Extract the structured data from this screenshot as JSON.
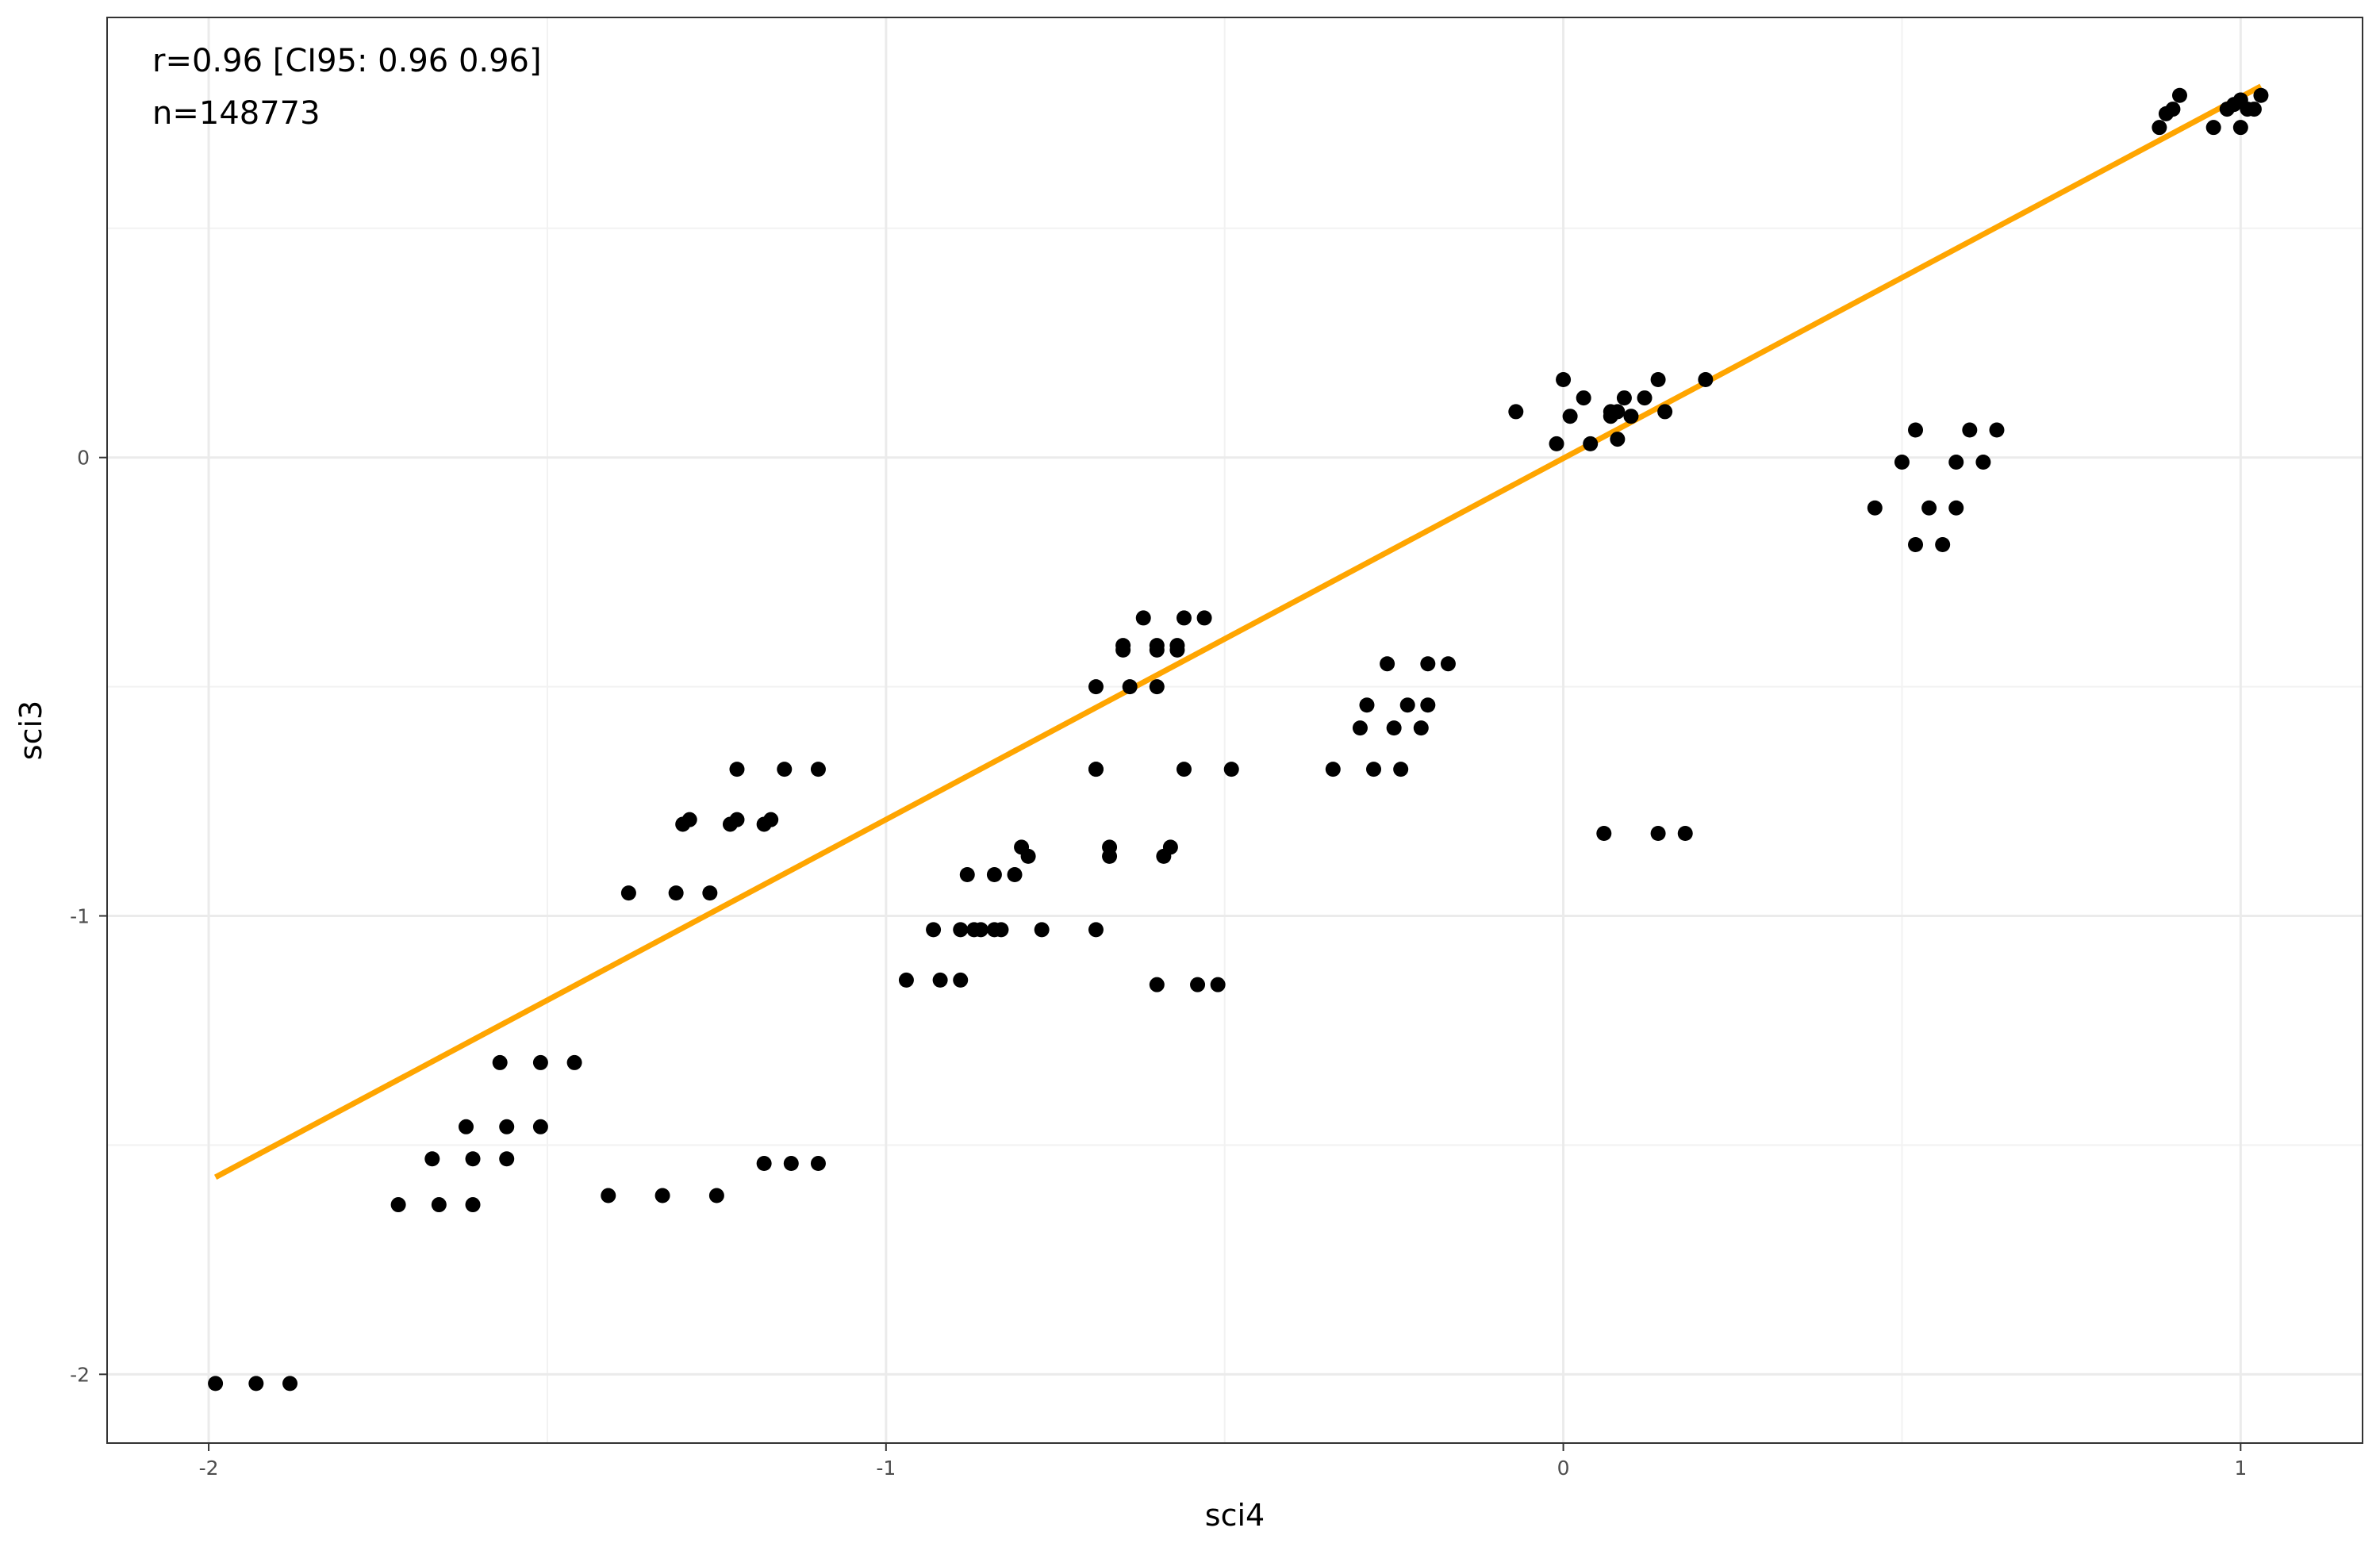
{
  "chart_data": {
    "type": "scatter",
    "title": "",
    "xlabel": "sci4",
    "ylabel": "sci3",
    "xlim": [
      -2.15,
      1.18
    ],
    "ylim": [
      -2.15,
      0.96
    ],
    "x_ticks": [
      -2,
      -1,
      0,
      1
    ],
    "y_ticks": [
      -2,
      -1,
      0
    ],
    "x_tick_labels": [
      "-2",
      "-1",
      "0",
      "1"
    ],
    "y_tick_labels": [
      "-2",
      "-1",
      "0"
    ],
    "grid": true,
    "annotations": [
      "r=0.96 [CI95: 0.96 0.96]",
      "n=148773"
    ],
    "fit_line": {
      "color": "#FFA500",
      "x": [
        -1.99,
        1.03
      ],
      "y": [
        -1.57,
        0.81
      ]
    },
    "point_color": "#000000",
    "points": [
      [
        -1.99,
        -2.02
      ],
      [
        -1.93,
        -2.02
      ],
      [
        -1.88,
        -2.02
      ],
      [
        -1.72,
        -1.63
      ],
      [
        -1.66,
        -1.63
      ],
      [
        -1.61,
        -1.63
      ],
      [
        -1.67,
        -1.53
      ],
      [
        -1.61,
        -1.53
      ],
      [
        -1.56,
        -1.53
      ],
      [
        -1.62,
        -1.46
      ],
      [
        -1.56,
        -1.46
      ],
      [
        -1.51,
        -1.46
      ],
      [
        -1.57,
        -1.32
      ],
      [
        -1.51,
        -1.32
      ],
      [
        -1.46,
        -1.32
      ],
      [
        -1.41,
        -1.61
      ],
      [
        -1.33,
        -1.61
      ],
      [
        -1.25,
        -1.61
      ],
      [
        -1.38,
        -0.95
      ],
      [
        -1.31,
        -0.95
      ],
      [
        -1.26,
        -0.95
      ],
      [
        -1.3,
        -0.8
      ],
      [
        -1.29,
        -0.79
      ],
      [
        -1.23,
        -0.8
      ],
      [
        -1.22,
        -0.79
      ],
      [
        -1.18,
        -0.8
      ],
      [
        -1.17,
        -0.79
      ],
      [
        -1.22,
        -0.68
      ],
      [
        -1.15,
        -0.68
      ],
      [
        -1.1,
        -0.68
      ],
      [
        -1.18,
        -1.54
      ],
      [
        -1.14,
        -1.54
      ],
      [
        -1.1,
        -1.54
      ],
      [
        -0.97,
        -1.14
      ],
      [
        -0.92,
        -1.14
      ],
      [
        -0.89,
        -1.14
      ],
      [
        -0.93,
        -1.03
      ],
      [
        -0.89,
        -1.03
      ],
      [
        -0.87,
        -1.03
      ],
      [
        -0.86,
        -1.03
      ],
      [
        -0.84,
        -1.03
      ],
      [
        -0.83,
        -1.03
      ],
      [
        -0.77,
        -1.03
      ],
      [
        -0.69,
        -1.03
      ],
      [
        -0.88,
        -0.91
      ],
      [
        -0.84,
        -0.91
      ],
      [
        -0.81,
        -0.91
      ],
      [
        -0.8,
        -0.85
      ],
      [
        -0.79,
        -0.87
      ],
      [
        -0.69,
        -0.68
      ],
      [
        -0.69,
        -0.68
      ],
      [
        -0.67,
        -0.85
      ],
      [
        -0.67,
        -0.87
      ],
      [
        -0.58,
        -0.85
      ],
      [
        -0.59,
        -0.87
      ],
      [
        -0.6,
        -1.15
      ],
      [
        -0.54,
        -1.15
      ],
      [
        -0.51,
        -1.15
      ],
      [
        -0.69,
        -0.5
      ],
      [
        -0.64,
        -0.5
      ],
      [
        -0.6,
        -0.5
      ],
      [
        -0.65,
        -0.42
      ],
      [
        -0.65,
        -0.41
      ],
      [
        -0.6,
        -0.42
      ],
      [
        -0.6,
        -0.41
      ],
      [
        -0.57,
        -0.42
      ],
      [
        -0.57,
        -0.41
      ],
      [
        -0.62,
        -0.35
      ],
      [
        -0.56,
        -0.35
      ],
      [
        -0.53,
        -0.35
      ],
      [
        -0.56,
        -0.68
      ],
      [
        -0.49,
        -0.68
      ],
      [
        -0.34,
        -0.68
      ],
      [
        -0.28,
        -0.68
      ],
      [
        -0.24,
        -0.68
      ],
      [
        -0.3,
        -0.59
      ],
      [
        -0.25,
        -0.59
      ],
      [
        -0.21,
        -0.59
      ],
      [
        -0.29,
        -0.54
      ],
      [
        -0.23,
        -0.54
      ],
      [
        -0.2,
        -0.54
      ],
      [
        -0.26,
        -0.45
      ],
      [
        -0.2,
        -0.45
      ],
      [
        -0.17,
        -0.45
      ],
      [
        0.06,
        -0.82
      ],
      [
        0.14,
        -0.82
      ],
      [
        0.18,
        -0.82
      ],
      [
        -0.07,
        0.1
      ],
      [
        -0.01,
        0.03
      ],
      [
        0.01,
        0.09
      ],
      [
        0.0,
        0.17
      ],
      [
        0.04,
        0.03
      ],
      [
        0.03,
        0.13
      ],
      [
        0.07,
        0.09
      ],
      [
        0.07,
        0.1
      ],
      [
        0.08,
        0.1
      ],
      [
        0.08,
        0.04
      ],
      [
        0.09,
        0.13
      ],
      [
        0.1,
        0.09
      ],
      [
        0.12,
        0.13
      ],
      [
        0.14,
        0.17
      ],
      [
        0.15,
        0.1
      ],
      [
        0.21,
        0.17
      ],
      [
        0.46,
        -0.11
      ],
      [
        0.5,
        -0.01
      ],
      [
        0.52,
        0.06
      ],
      [
        0.52,
        -0.19
      ],
      [
        0.54,
        -0.11
      ],
      [
        0.56,
        -0.19
      ],
      [
        0.58,
        -0.11
      ],
      [
        0.58,
        -0.01
      ],
      [
        0.6,
        0.06
      ],
      [
        0.62,
        -0.01
      ],
      [
        0.64,
        0.06
      ],
      [
        0.88,
        0.72
      ],
      [
        0.89,
        0.75
      ],
      [
        0.9,
        0.76
      ],
      [
        0.91,
        0.79
      ],
      [
        0.96,
        0.72
      ],
      [
        0.98,
        0.76
      ],
      [
        0.99,
        0.77
      ],
      [
        1.0,
        0.78
      ],
      [
        1.0,
        0.72
      ],
      [
        1.01,
        0.76
      ],
      [
        1.02,
        0.76
      ],
      [
        1.03,
        0.79
      ]
    ]
  }
}
